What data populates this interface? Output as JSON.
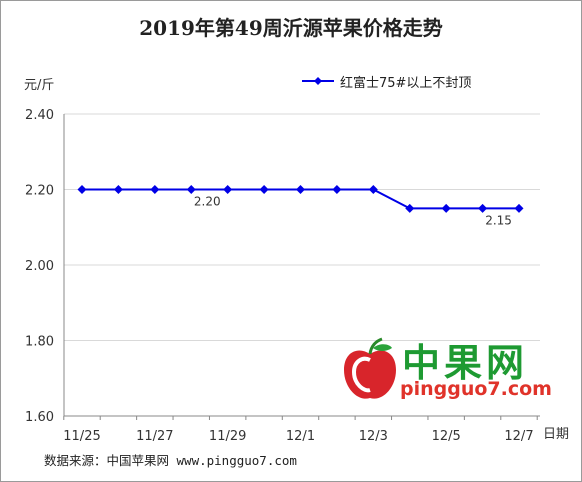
{
  "chart_data": {
    "type": "line",
    "title": "2019年第49周沂源苹果价格走势",
    "ylabel": "元/斤",
    "xlabel": "日期",
    "ylim": [
      1.6,
      2.4
    ],
    "yticks": [
      "1.60",
      "1.80",
      "2.00",
      "2.20",
      "2.40"
    ],
    "categories": [
      "11/25",
      "11/26",
      "11/27",
      "11/28",
      "11/29",
      "11/30",
      "12/1",
      "12/2",
      "12/3",
      "12/4",
      "12/5",
      "12/6",
      "12/7"
    ],
    "xtick_labels": [
      "11/25",
      "",
      "11/27",
      "",
      "11/29",
      "",
      "12/1",
      "",
      "12/3",
      "",
      "12/5",
      "",
      "12/7"
    ],
    "series": [
      {
        "name": "红富士75#以上不封顶",
        "color": "#0000e6",
        "values": [
          2.2,
          2.2,
          2.2,
          2.2,
          2.2,
          2.2,
          2.2,
          2.2,
          2.2,
          2.15,
          2.15,
          2.15,
          2.15
        ]
      }
    ],
    "data_labels": [
      {
        "index": 3,
        "text": "2.20"
      },
      {
        "index": 11,
        "text": "2.15"
      }
    ],
    "grid": true,
    "legend_position": "top-right"
  },
  "source_text": "数据来源：中国苹果网 www.pingguo7.com",
  "watermark": {
    "cn": "中果网",
    "en": "pingguo7.com"
  }
}
